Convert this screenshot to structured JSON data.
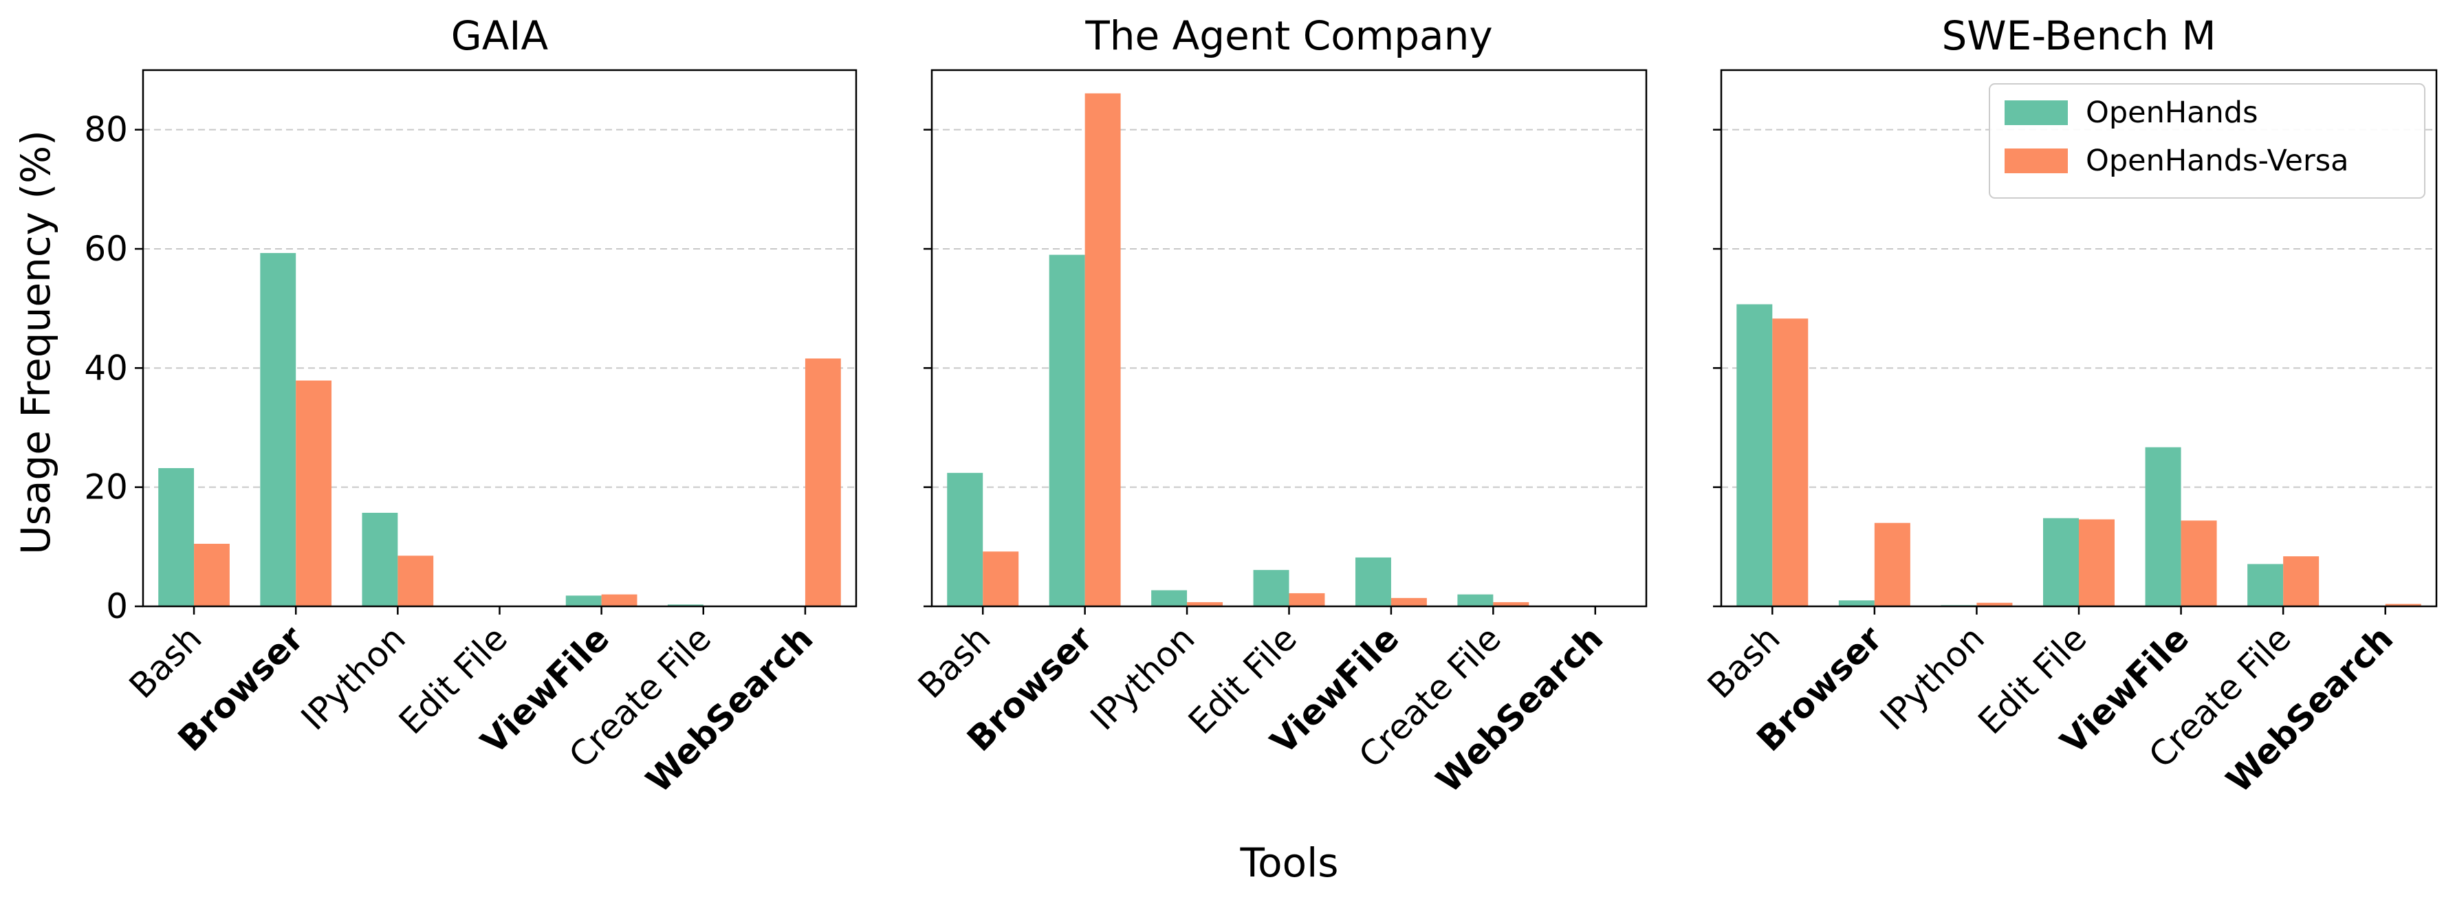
{
  "chart_data": [
    {
      "type": "bar",
      "title": "GAIA",
      "categories": [
        "Bash",
        "Browser",
        "IPython",
        "Edit File",
        "ViewFile",
        "Create File",
        "WebSearch"
      ],
      "bold_categories": [
        "Browser",
        "ViewFile",
        "WebSearch"
      ],
      "series": [
        {
          "name": "OpenHands",
          "values": [
            23.2,
            59.3,
            15.7,
            0,
            1.8,
            0.3,
            0
          ]
        },
        {
          "name": "OpenHands-Versa",
          "values": [
            10.5,
            37.9,
            8.5,
            0,
            2.0,
            0,
            41.6
          ]
        }
      ],
      "ylabel": "Usage Frequency (%)",
      "ylim": [
        0,
        90
      ],
      "yticks": [
        0,
        20,
        40,
        60,
        80
      ],
      "grid": "y-dashed",
      "legend": false
    },
    {
      "type": "bar",
      "title": "The Agent Company",
      "categories": [
        "Bash",
        "Browser",
        "IPython",
        "Edit File",
        "ViewFile",
        "Create File",
        "WebSearch"
      ],
      "bold_categories": [
        "Browser",
        "ViewFile",
        "WebSearch"
      ],
      "series": [
        {
          "name": "OpenHands",
          "values": [
            22.4,
            59.0,
            2.7,
            6.1,
            8.2,
            2.0,
            0
          ]
        },
        {
          "name": "OpenHands-Versa",
          "values": [
            9.2,
            86.1,
            0.7,
            2.2,
            1.4,
            0.7,
            0
          ]
        }
      ],
      "ylim": [
        0,
        90
      ],
      "yticks": [
        0,
        20,
        40,
        60,
        80
      ],
      "grid": "y-dashed",
      "legend": false
    },
    {
      "type": "bar",
      "title": "SWE-Bench M",
      "categories": [
        "Bash",
        "Browser",
        "IPython",
        "Edit File",
        "ViewFile",
        "Create File",
        "WebSearch"
      ],
      "bold_categories": [
        "Browser",
        "ViewFile",
        "WebSearch"
      ],
      "series": [
        {
          "name": "OpenHands",
          "values": [
            50.7,
            1.0,
            0.2,
            14.8,
            26.7,
            7.1,
            0
          ]
        },
        {
          "name": "OpenHands-Versa",
          "values": [
            48.3,
            14.0,
            0.6,
            14.6,
            14.4,
            8.4,
            0.4
          ]
        }
      ],
      "ylim": [
        0,
        90
      ],
      "yticks": [
        0,
        20,
        40,
        60,
        80
      ],
      "grid": "y-dashed",
      "legend": "top-right"
    }
  ],
  "xlabel": "Tools",
  "colors": {
    "OpenHands": "#66c2a5",
    "OpenHands-Versa": "#fc8d62",
    "grid": "#c8c8c8"
  }
}
